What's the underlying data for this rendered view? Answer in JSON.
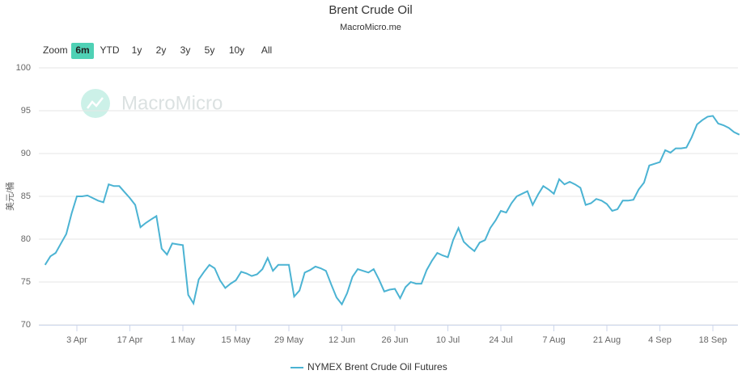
{
  "chart_data": {
    "type": "line",
    "title": "Brent Crude Oil",
    "subtitle": "MacroMicro.me",
    "watermark": "MacroMicro",
    "range_selector": {
      "label": "Zoom",
      "buttons": [
        "6m",
        "YTD",
        "1y",
        "2y",
        "3y",
        "5y",
        "10y",
        "All"
      ],
      "selected": 0
    },
    "y_label": "美元/桶",
    "categories": [
      null,
      null,
      null,
      null,
      null,
      null,
      "3 Apr",
      null,
      null,
      null,
      null,
      null,
      null,
      null,
      null,
      null,
      "17 Apr",
      null,
      null,
      null,
      null,
      null,
      null,
      null,
      null,
      null,
      "1 May",
      null,
      null,
      null,
      null,
      null,
      null,
      null,
      null,
      null,
      "15 May",
      null,
      null,
      null,
      null,
      null,
      null,
      null,
      null,
      null,
      "29 May",
      null,
      null,
      null,
      null,
      null,
      null,
      null,
      null,
      null,
      "12 Jun",
      null,
      null,
      null,
      null,
      null,
      null,
      null,
      null,
      null,
      "26 Jun",
      null,
      null,
      null,
      null,
      null,
      null,
      null,
      null,
      null,
      "10 Jul",
      null,
      null,
      null,
      null,
      null,
      null,
      null,
      null,
      null,
      "24 Jul",
      null,
      null,
      null,
      null,
      null,
      null,
      null,
      null,
      null,
      "7 Aug",
      null,
      null,
      null,
      null,
      null,
      null,
      null,
      null,
      null,
      "21 Aug",
      null,
      null,
      null,
      null,
      null,
      null,
      null,
      null,
      null,
      "4 Sep",
      null,
      null,
      null,
      null,
      null,
      null,
      null,
      null,
      null,
      "18 Sep",
      null,
      null,
      null,
      null,
      null
    ],
    "series": [
      {
        "name": "NYMEX Brent Crude Oil Futures",
        "color": "#4bb3d3",
        "values": [
          77.0,
          78.0,
          78.4,
          79.5,
          80.6,
          83,
          85,
          85,
          85.1,
          84.8,
          84.5,
          84.3,
          86.4,
          86.2,
          86.2,
          85.5,
          84.8,
          84,
          81.4,
          81.9,
          82.3,
          82.7,
          78.9,
          78.2,
          79.5,
          79.4,
          79.3,
          73.5,
          72.5,
          75.3,
          76.2,
          77,
          76.6,
          75.2,
          74.3,
          74.8,
          75.2,
          76.2,
          76,
          75.7,
          75.9,
          76.5,
          77.8,
          76.3,
          77,
          77,
          77,
          73.3,
          74,
          76.1,
          76.4,
          76.8,
          76.6,
          76.3,
          74.7,
          73.2,
          72.4,
          73.7,
          75.6,
          76.5,
          76.3,
          76.1,
          76.5,
          75.3,
          73.9,
          74.1,
          74.2,
          73.1,
          74.4,
          75,
          74.8,
          74.8,
          76.4,
          77.5,
          78.4,
          78.1,
          77.9,
          79.9,
          81.3,
          79.7,
          79.1,
          78.6,
          79.6,
          79.9,
          81.3,
          82.2,
          83.3,
          83.1,
          84.2,
          85,
          85.3,
          85.6,
          84,
          85.2,
          86.2,
          85.8,
          85.3,
          87,
          86.4,
          86.7,
          86.4,
          86,
          84,
          84.2,
          84.7,
          84.5,
          84.1,
          83.3,
          83.5,
          84.5,
          84.5,
          84.6,
          85.8,
          86.6,
          88.6,
          88.8,
          89,
          90.4,
          90.1,
          90.6,
          90.6,
          90.7,
          91.9,
          93.4,
          93.9,
          94.3,
          94.4,
          93.5,
          93.3,
          93,
          92.5,
          92.2
        ]
      }
    ],
    "ylim": [
      70,
      100
    ],
    "yticks": [
      70,
      75,
      80,
      85,
      90,
      95,
      100
    ],
    "grid": true
  }
}
